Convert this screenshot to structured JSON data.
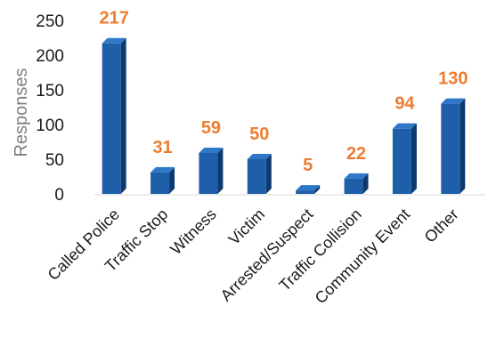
{
  "chart_data": {
    "type": "bar",
    "title": "",
    "xlabel": "",
    "ylabel": "Responses",
    "categories": [
      "Called Police",
      "Traffic Stop",
      "Witness",
      "Victim",
      "Arrested/Suspect",
      "Traffic Collision",
      "Community Event",
      "Other"
    ],
    "values": [
      217,
      31,
      59,
      50,
      5,
      22,
      94,
      130
    ],
    "ylim": [
      0,
      250
    ],
    "yticks": [
      0,
      50,
      100,
      150,
      200,
      250
    ],
    "grid": false,
    "legend": "none",
    "bar_style": "3d",
    "colors": {
      "bar_front": "#1f5ea8",
      "bar_side": "#0d3a6e",
      "bar_top": "#2f78c8",
      "data_label": "#ed7d31",
      "axis_line": "#d9d9d9"
    }
  }
}
